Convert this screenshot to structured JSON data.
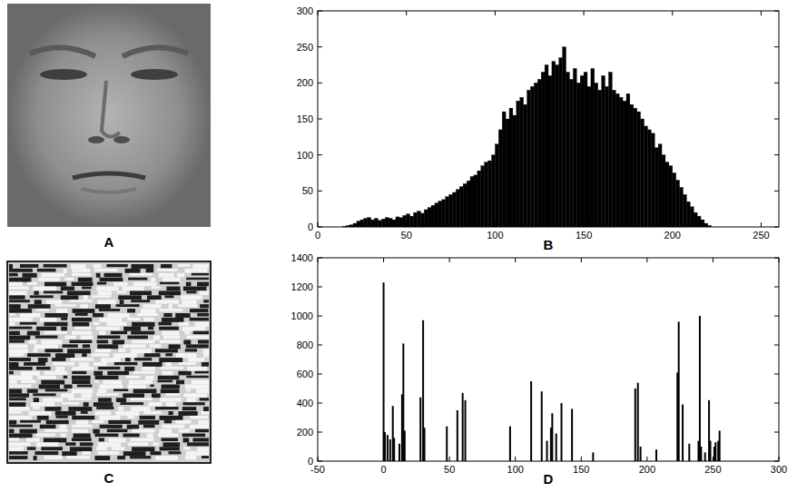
{
  "images": [
    {
      "caption": "A"
    },
    {
      "caption": "C"
    }
  ],
  "chart_data": [
    {
      "type": "histogram",
      "xlabel": "B",
      "color": "#000000",
      "grid": false,
      "xlim": [
        0,
        260
      ],
      "xticks": [
        0,
        50,
        100,
        150,
        200,
        250
      ],
      "ylim": [
        0,
        300
      ],
      "yticks": [
        0,
        50,
        100,
        150,
        200,
        250,
        300
      ],
      "bins": [
        14,
        16,
        18,
        20,
        22,
        24,
        26,
        28,
        30,
        32,
        34,
        36,
        38,
        40,
        42,
        44,
        46,
        48,
        50,
        52,
        54,
        56,
        58,
        60,
        62,
        64,
        66,
        68,
        70,
        72,
        74,
        76,
        78,
        80,
        82,
        84,
        86,
        88,
        90,
        92,
        94,
        96,
        98,
        100,
        102,
        104,
        106,
        108,
        110,
        112,
        114,
        116,
        118,
        120,
        122,
        124,
        126,
        128,
        130,
        132,
        134,
        136,
        138,
        140,
        142,
        144,
        146,
        148,
        150,
        152,
        154,
        156,
        158,
        160,
        162,
        164,
        166,
        168,
        170,
        172,
        174,
        176,
        178,
        180,
        182,
        184,
        186,
        188,
        190,
        192,
        194,
        196,
        198,
        200,
        202,
        204,
        206,
        208,
        210,
        212,
        214,
        216,
        218,
        220,
        222
      ],
      "counts": [
        1,
        2,
        3,
        5,
        8,
        10,
        12,
        13,
        10,
        12,
        9,
        11,
        13,
        12,
        10,
        14,
        13,
        16,
        18,
        15,
        20,
        22,
        19,
        24,
        27,
        30,
        33,
        36,
        38,
        42,
        45,
        48,
        52,
        56,
        60,
        64,
        70,
        72,
        78,
        85,
        90,
        92,
        100,
        115,
        135,
        160,
        150,
        165,
        155,
        175,
        180,
        170,
        190,
        195,
        200,
        205,
        215,
        225,
        210,
        230,
        225,
        235,
        250,
        215,
        205,
        220,
        200,
        210,
        215,
        195,
        220,
        200,
        190,
        210,
        195,
        215,
        190,
        185,
        180,
        175,
        185,
        170,
        165,
        160,
        150,
        140,
        135,
        130,
        110,
        115,
        100,
        90,
        85,
        75,
        65,
        55,
        45,
        35,
        28,
        20,
        15,
        10,
        5,
        2
      ]
    },
    {
      "type": "bar",
      "xlabel": "D",
      "color": "#000000",
      "grid": false,
      "xlim": [
        -50,
        300
      ],
      "xticks": [
        -50,
        0,
        50,
        100,
        150,
        200,
        250,
        300
      ],
      "ylim": [
        0,
        1400
      ],
      "yticks": [
        0,
        200,
        400,
        600,
        800,
        1000,
        1200,
        1400
      ],
      "x": [
        0,
        1,
        3,
        5,
        7,
        8,
        12,
        14,
        15,
        16,
        28,
        30,
        31,
        48,
        56,
        60,
        62,
        96,
        112,
        120,
        124,
        127,
        128,
        131,
        135,
        143,
        159,
        191,
        193,
        195,
        207,
        223,
        224,
        227,
        232,
        239,
        240,
        241,
        244,
        247,
        248,
        251,
        252,
        254,
        255
      ],
      "values": [
        1230,
        200,
        180,
        150,
        380,
        160,
        120,
        460,
        810,
        210,
        440,
        970,
        230,
        240,
        350,
        470,
        420,
        240,
        550,
        480,
        140,
        230,
        330,
        190,
        400,
        360,
        60,
        500,
        540,
        100,
        80,
        610,
        960,
        390,
        120,
        140,
        1000,
        100,
        60,
        420,
        140,
        100,
        130,
        140,
        210
      ]
    }
  ]
}
